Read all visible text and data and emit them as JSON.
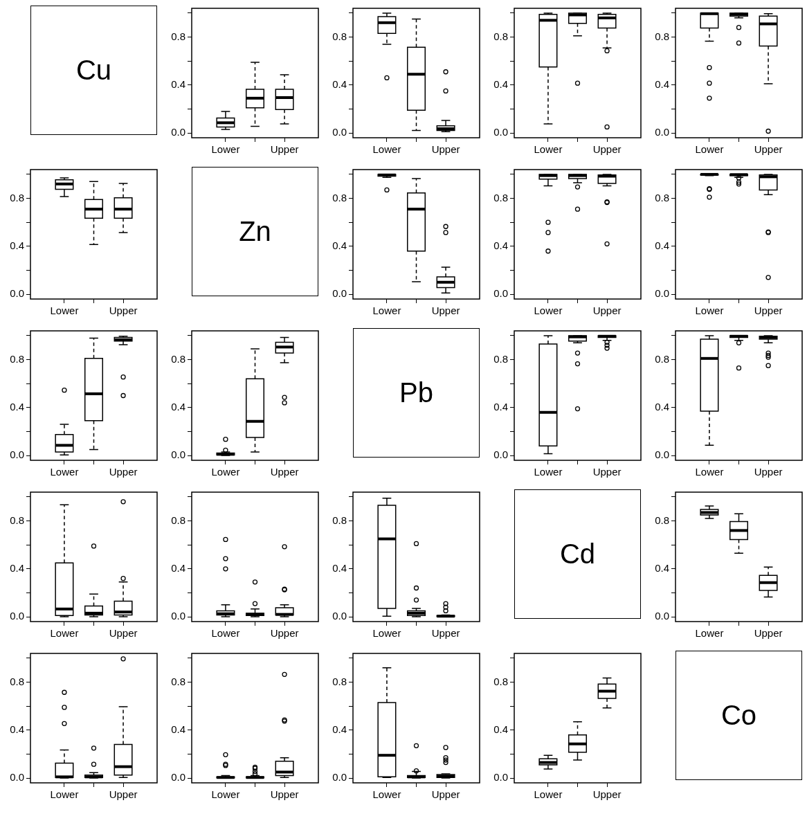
{
  "chart_data": [
    {
      "type": "other",
      "title": "Cu"
    },
    {
      "type": "box",
      "categories": [
        "Lower",
        null,
        "Upper"
      ],
      "ylim": [
        -0.04,
        1.04
      ],
      "yticks": [
        {
          "value": 0,
          "label": "0.0"
        },
        {
          "value": 0.2,
          "label": null
        },
        {
          "value": 0.4,
          "label": "0.4"
        },
        {
          "value": 0.6,
          "label": null
        },
        {
          "value": 0.8,
          "label": "0.8"
        },
        {
          "value": 1,
          "label": null
        }
      ],
      "boxes": [
        {
          "low": 0.03,
          "q1": 0.05,
          "median": 0.085,
          "q3": 0.125,
          "high": 0.18
        },
        {
          "low": 0.055,
          "q1": 0.21,
          "median": 0.29,
          "q3": 0.365,
          "high": 0.59
        },
        {
          "low": 0.075,
          "q1": 0.195,
          "median": 0.295,
          "q3": 0.365,
          "high": 0.485
        }
      ]
    },
    {
      "type": "box",
      "categories": [
        "Lower",
        null,
        "Upper"
      ],
      "ylim": [
        -0.04,
        1.04
      ],
      "yticks": [
        {
          "value": 0,
          "label": "0.0"
        },
        {
          "value": 0.2,
          "label": null
        },
        {
          "value": 0.4,
          "label": "0.4"
        },
        {
          "value": 0.6,
          "label": null
        },
        {
          "value": 0.8,
          "label": "0.8"
        },
        {
          "value": 1,
          "label": null
        }
      ],
      "boxes": [
        {
          "low": 0.74,
          "q1": 0.83,
          "median": 0.92,
          "q3": 0.97,
          "high": 1.0,
          "outliers": [
            0.46
          ]
        },
        {
          "low": 0.02,
          "q1": 0.19,
          "median": 0.49,
          "q3": 0.715,
          "high": 0.95
        },
        {
          "low": 0.01,
          "q1": 0.02,
          "median": 0.035,
          "q3": 0.06,
          "high": 0.105,
          "outliers": [
            0.35,
            0.51
          ]
        }
      ]
    },
    {
      "type": "box",
      "categories": [
        "Lower",
        null,
        "Upper"
      ],
      "ylim": [
        -0.04,
        1.04
      ],
      "yticks": [
        {
          "value": 0,
          "label": "0.0"
        },
        {
          "value": 0.2,
          "label": null
        },
        {
          "value": 0.4,
          "label": "0.4"
        },
        {
          "value": 0.6,
          "label": null
        },
        {
          "value": 0.8,
          "label": "0.8"
        },
        {
          "value": 1,
          "label": null
        }
      ],
      "boxes": [
        {
          "low": 0.075,
          "q1": 0.55,
          "median": 0.94,
          "q3": 0.99,
          "high": 1.0
        },
        {
          "low": 0.81,
          "q1": 0.915,
          "median": 0.985,
          "q3": 1.0,
          "high": 1.0,
          "outliers": [
            0.415
          ]
        },
        {
          "low": 0.71,
          "q1": 0.875,
          "median": 0.96,
          "q3": 0.99,
          "high": 1.0,
          "outliers": [
            0.685,
            0.05
          ]
        }
      ]
    },
    {
      "type": "box",
      "categories": [
        "Lower",
        null,
        "Upper"
      ],
      "ylim": [
        -0.04,
        1.04
      ],
      "yticks": [
        {
          "value": 0,
          "label": "0.0"
        },
        {
          "value": 0.2,
          "label": null
        },
        {
          "value": 0.4,
          "label": "0.4"
        },
        {
          "value": 0.6,
          "label": null
        },
        {
          "value": 0.8,
          "label": "0.8"
        },
        {
          "value": 1,
          "label": null
        }
      ],
      "boxes": [
        {
          "low": 0.765,
          "q1": 0.875,
          "median": 0.995,
          "q3": 1.0,
          "high": 1.0,
          "outliers": [
            0.545,
            0.415,
            0.29
          ]
        },
        {
          "low": 0.96,
          "q1": 0.975,
          "median": 0.99,
          "q3": 1.0,
          "high": 1.0,
          "outliers": [
            0.88,
            0.75
          ]
        },
        {
          "low": 0.41,
          "q1": 0.725,
          "median": 0.91,
          "q3": 0.975,
          "high": 0.995,
          "outliers": [
            0.015
          ]
        }
      ]
    },
    {
      "type": "box",
      "categories": [
        "Lower",
        null,
        "Upper"
      ],
      "ylim": [
        -0.04,
        1.04
      ],
      "yticks": [
        {
          "value": 0,
          "label": "0.0"
        },
        {
          "value": 0.2,
          "label": null
        },
        {
          "value": 0.4,
          "label": "0.4"
        },
        {
          "value": 0.6,
          "label": null
        },
        {
          "value": 0.8,
          "label": "0.8"
        },
        {
          "value": 1,
          "label": null
        }
      ],
      "boxes": [
        {
          "low": 0.815,
          "q1": 0.875,
          "median": 0.92,
          "q3": 0.955,
          "high": 0.97
        },
        {
          "low": 0.415,
          "q1": 0.635,
          "median": 0.71,
          "q3": 0.79,
          "high": 0.94
        },
        {
          "low": 0.515,
          "q1": 0.635,
          "median": 0.71,
          "q3": 0.805,
          "high": 0.925
        }
      ]
    },
    {
      "type": "other",
      "title": "Zn"
    },
    {
      "type": "box",
      "categories": [
        "Lower",
        null,
        "Upper"
      ],
      "ylim": [
        -0.04,
        1.04
      ],
      "yticks": [
        {
          "value": 0,
          "label": "0.0"
        },
        {
          "value": 0.2,
          "label": null
        },
        {
          "value": 0.4,
          "label": "0.4"
        },
        {
          "value": 0.6,
          "label": null
        },
        {
          "value": 0.8,
          "label": "0.8"
        },
        {
          "value": 1,
          "label": null
        }
      ],
      "boxes": [
        {
          "low": 0.975,
          "q1": 0.985,
          "median": 0.995,
          "q3": 1.0,
          "high": 1.0,
          "outliers": [
            0.87
          ]
        },
        {
          "low": 0.105,
          "q1": 0.36,
          "median": 0.71,
          "q3": 0.845,
          "high": 0.965
        },
        {
          "low": 0.01,
          "q1": 0.055,
          "median": 0.1,
          "q3": 0.145,
          "high": 0.225,
          "outliers": [
            0.565,
            0.515
          ]
        }
      ]
    },
    {
      "type": "box",
      "categories": [
        "Lower",
        null,
        "Upper"
      ],
      "ylim": [
        -0.04,
        1.04
      ],
      "yticks": [
        {
          "value": 0,
          "label": "0.0"
        },
        {
          "value": 0.2,
          "label": null
        },
        {
          "value": 0.4,
          "label": "0.4"
        },
        {
          "value": 0.6,
          "label": null
        },
        {
          "value": 0.8,
          "label": "0.8"
        },
        {
          "value": 1,
          "label": null
        }
      ],
      "boxes": [
        {
          "low": 0.905,
          "q1": 0.96,
          "median": 0.99,
          "q3": 1.0,
          "high": 1.0,
          "outliers": [
            0.6,
            0.515,
            0.36
          ]
        },
        {
          "low": 0.93,
          "q1": 0.965,
          "median": 0.99,
          "q3": 1.0,
          "high": 1.0,
          "outliers": [
            0.895,
            0.71
          ]
        },
        {
          "low": 0.905,
          "q1": 0.925,
          "median": 0.985,
          "q3": 0.995,
          "high": 1.0,
          "outliers": [
            0.77,
            0.765,
            0.42
          ]
        }
      ]
    },
    {
      "type": "box",
      "categories": [
        "Lower",
        null,
        "Upper"
      ],
      "ylim": [
        -0.04,
        1.04
      ],
      "yticks": [
        {
          "value": 0,
          "label": "0.0"
        },
        {
          "value": 0.2,
          "label": null
        },
        {
          "value": 0.4,
          "label": "0.4"
        },
        {
          "value": 0.6,
          "label": null
        },
        {
          "value": 0.8,
          "label": "0.8"
        },
        {
          "value": 1,
          "label": null
        }
      ],
      "boxes": [
        {
          "low": 0.99,
          "q1": 0.995,
          "median": 1.0,
          "q3": 1.0,
          "high": 1.0,
          "outliers": [
            0.88,
            0.875,
            0.81
          ]
        },
        {
          "low": 0.975,
          "q1": 0.99,
          "median": 0.998,
          "q3": 1.0,
          "high": 1.0,
          "outliers": [
            0.97,
            0.935,
            0.92
          ]
        },
        {
          "low": 0.83,
          "q1": 0.87,
          "median": 0.98,
          "q3": 0.995,
          "high": 1.0,
          "outliers": [
            0.52,
            0.515,
            0.14
          ]
        }
      ]
    },
    {
      "type": "box",
      "categories": [
        "Lower",
        null,
        "Upper"
      ],
      "ylim": [
        -0.04,
        1.04
      ],
      "yticks": [
        {
          "value": 0,
          "label": "0.0"
        },
        {
          "value": 0.2,
          "label": null
        },
        {
          "value": 0.4,
          "label": "0.4"
        },
        {
          "value": 0.6,
          "label": null
        },
        {
          "value": 0.8,
          "label": "0.8"
        },
        {
          "value": 1,
          "label": null
        }
      ],
      "boxes": [
        {
          "low": 0.005,
          "q1": 0.03,
          "median": 0.085,
          "q3": 0.175,
          "high": 0.26,
          "outliers": [
            0.545
          ]
        },
        {
          "low": 0.05,
          "q1": 0.29,
          "median": 0.515,
          "q3": 0.81,
          "high": 0.98
        },
        {
          "low": 0.925,
          "q1": 0.955,
          "median": 0.965,
          "q3": 0.985,
          "high": 0.995,
          "outliers": [
            0.655,
            0.5
          ]
        }
      ]
    },
    {
      "type": "box",
      "categories": [
        "Lower",
        null,
        "Upper"
      ],
      "ylim": [
        -0.04,
        1.04
      ],
      "yticks": [
        {
          "value": 0,
          "label": "0.0"
        },
        {
          "value": 0.2,
          "label": null
        },
        {
          "value": 0.4,
          "label": "0.4"
        },
        {
          "value": 0.6,
          "label": null
        },
        {
          "value": 0.8,
          "label": "0.8"
        },
        {
          "value": 1,
          "label": null
        }
      ],
      "boxes": [
        {
          "low": 0.0,
          "q1": 0.005,
          "median": 0.01,
          "q3": 0.02,
          "high": 0.03,
          "outliers": [
            0.045,
            0.135
          ]
        },
        {
          "low": 0.03,
          "q1": 0.15,
          "median": 0.285,
          "q3": 0.64,
          "high": 0.89
        },
        {
          "low": 0.775,
          "q1": 0.855,
          "median": 0.905,
          "q3": 0.945,
          "high": 0.985,
          "outliers": [
            0.485,
            0.44
          ]
        }
      ]
    },
    {
      "type": "other",
      "title": "Pb"
    },
    {
      "type": "box",
      "categories": [
        "Lower",
        null,
        "Upper"
      ],
      "ylim": [
        -0.04,
        1.04
      ],
      "yticks": [
        {
          "value": 0,
          "label": "0.0"
        },
        {
          "value": 0.2,
          "label": null
        },
        {
          "value": 0.4,
          "label": "0.4"
        },
        {
          "value": 0.6,
          "label": null
        },
        {
          "value": 0.8,
          "label": "0.8"
        },
        {
          "value": 1,
          "label": null
        }
      ],
      "boxes": [
        {
          "low": 0.015,
          "q1": 0.08,
          "median": 0.36,
          "q3": 0.93,
          "high": 1.0
        },
        {
          "low": 0.94,
          "q1": 0.955,
          "median": 0.99,
          "q3": 1.0,
          "high": 1.0,
          "outliers": [
            0.855,
            0.765,
            0.39
          ]
        },
        {
          "low": 0.96,
          "q1": 0.985,
          "median": 0.995,
          "q3": 1.0,
          "high": 1.0,
          "outliers": [
            0.945,
            0.92,
            0.895
          ]
        }
      ]
    },
    {
      "type": "box",
      "categories": [
        "Lower",
        null,
        "Upper"
      ],
      "ylim": [
        -0.04,
        1.04
      ],
      "yticks": [
        {
          "value": 0,
          "label": "0.0"
        },
        {
          "value": 0.2,
          "label": null
        },
        {
          "value": 0.4,
          "label": "0.4"
        },
        {
          "value": 0.6,
          "label": null
        },
        {
          "value": 0.8,
          "label": "0.8"
        },
        {
          "value": 1,
          "label": null
        }
      ],
      "boxes": [
        {
          "low": 0.085,
          "q1": 0.37,
          "median": 0.81,
          "q3": 0.97,
          "high": 1.0
        },
        {
          "low": 0.96,
          "q1": 0.985,
          "median": 0.995,
          "q3": 1.0,
          "high": 1.0,
          "outliers": [
            0.94,
            0.73
          ]
        },
        {
          "low": 0.94,
          "q1": 0.97,
          "median": 0.985,
          "q3": 0.995,
          "high": 1.0,
          "outliers": [
            0.855,
            0.835,
            0.82,
            0.75
          ]
        }
      ]
    },
    {
      "type": "box",
      "categories": [
        "Lower",
        null,
        "Upper"
      ],
      "ylim": [
        -0.04,
        1.04
      ],
      "yticks": [
        {
          "value": 0,
          "label": "0.0"
        },
        {
          "value": 0.2,
          "label": null
        },
        {
          "value": 0.4,
          "label": "0.4"
        },
        {
          "value": 0.6,
          "label": null
        },
        {
          "value": 0.8,
          "label": "0.8"
        },
        {
          "value": 1,
          "label": null
        }
      ],
      "boxes": [
        {
          "low": 0.0,
          "q1": 0.01,
          "median": 0.065,
          "q3": 0.45,
          "high": 0.935
        },
        {
          "low": 0.0,
          "q1": 0.015,
          "median": 0.03,
          "q3": 0.09,
          "high": 0.19,
          "outliers": [
            0.59
          ]
        },
        {
          "low": 0.0,
          "q1": 0.015,
          "median": 0.04,
          "q3": 0.13,
          "high": 0.29,
          "outliers": [
            0.32,
            0.96
          ]
        }
      ]
    },
    {
      "type": "box",
      "categories": [
        "Lower",
        null,
        "Upper"
      ],
      "ylim": [
        -0.04,
        1.04
      ],
      "yticks": [
        {
          "value": 0,
          "label": "0.0"
        },
        {
          "value": 0.2,
          "label": null
        },
        {
          "value": 0.4,
          "label": "0.4"
        },
        {
          "value": 0.6,
          "label": null
        },
        {
          "value": 0.8,
          "label": "0.8"
        },
        {
          "value": 1,
          "label": null
        }
      ],
      "boxes": [
        {
          "low": 0.0,
          "q1": 0.015,
          "median": 0.025,
          "q3": 0.05,
          "high": 0.1,
          "outliers": [
            0.4,
            0.485,
            0.645
          ]
        },
        {
          "low": 0.0,
          "q1": 0.01,
          "median": 0.02,
          "q3": 0.03,
          "high": 0.065,
          "outliers": [
            0.11,
            0.29
          ]
        },
        {
          "low": 0.0,
          "q1": 0.015,
          "median": 0.02,
          "q3": 0.075,
          "high": 0.1,
          "outliers": [
            0.225,
            0.23,
            0.585
          ]
        }
      ]
    },
    {
      "type": "box",
      "categories": [
        "Lower",
        null,
        "Upper"
      ],
      "ylim": [
        -0.04,
        1.04
      ],
      "yticks": [
        {
          "value": 0,
          "label": "0.0"
        },
        {
          "value": 0.2,
          "label": null
        },
        {
          "value": 0.4,
          "label": "0.4"
        },
        {
          "value": 0.6,
          "label": null
        },
        {
          "value": 0.8,
          "label": "0.8"
        },
        {
          "value": 1,
          "label": null
        }
      ],
      "boxes": [
        {
          "low": 0.005,
          "q1": 0.07,
          "median": 0.65,
          "q3": 0.93,
          "high": 0.99
        },
        {
          "low": 0.0,
          "q1": 0.01,
          "median": 0.03,
          "q3": 0.05,
          "high": 0.07,
          "outliers": [
            0.14,
            0.24,
            0.61
          ]
        },
        {
          "low": 0.0,
          "q1": 0.002,
          "median": 0.005,
          "q3": 0.01,
          "high": 0.015,
          "outliers": [
            0.05,
            0.08,
            0.11
          ]
        }
      ]
    },
    {
      "type": "other",
      "title": "Cd"
    },
    {
      "type": "box",
      "categories": [
        "Lower",
        null,
        "Upper"
      ],
      "ylim": [
        -0.04,
        1.04
      ],
      "yticks": [
        {
          "value": 0,
          "label": "0.0"
        },
        {
          "value": 0.2,
          "label": null
        },
        {
          "value": 0.4,
          "label": "0.4"
        },
        {
          "value": 0.6,
          "label": null
        },
        {
          "value": 0.8,
          "label": "0.8"
        },
        {
          "value": 1,
          "label": null
        }
      ],
      "boxes": [
        {
          "low": 0.82,
          "q1": 0.85,
          "median": 0.87,
          "q3": 0.895,
          "high": 0.925
        },
        {
          "low": 0.53,
          "q1": 0.645,
          "median": 0.72,
          "q3": 0.795,
          "high": 0.86
        },
        {
          "low": 0.165,
          "q1": 0.22,
          "median": 0.285,
          "q3": 0.345,
          "high": 0.415
        }
      ]
    },
    {
      "type": "box",
      "categories": [
        "Lower",
        null,
        "Upper"
      ],
      "ylim": [
        -0.04,
        1.04
      ],
      "yticks": [
        {
          "value": 0,
          "label": "0.0"
        },
        {
          "value": 0.2,
          "label": null
        },
        {
          "value": 0.4,
          "label": "0.4"
        },
        {
          "value": 0.6,
          "label": null
        },
        {
          "value": 0.8,
          "label": "0.8"
        },
        {
          "value": 1,
          "label": null
        }
      ],
      "boxes": [
        {
          "low": 0.0,
          "q1": 0.005,
          "median": 0.01,
          "q3": 0.125,
          "high": 0.235,
          "outliers": [
            0.455,
            0.59,
            0.715
          ]
        },
        {
          "low": 0.0,
          "q1": 0.005,
          "median": 0.01,
          "q3": 0.025,
          "high": 0.045,
          "outliers": [
            0.115,
            0.25
          ]
        },
        {
          "low": 0.005,
          "q1": 0.025,
          "median": 0.095,
          "q3": 0.28,
          "high": 0.595,
          "outliers": [
            0.995
          ]
        }
      ]
    },
    {
      "type": "box",
      "categories": [
        "Lower",
        null,
        "Upper"
      ],
      "ylim": [
        -0.04,
        1.04
      ],
      "yticks": [
        {
          "value": 0,
          "label": "0.0"
        },
        {
          "value": 0.2,
          "label": null
        },
        {
          "value": 0.4,
          "label": "0.4"
        },
        {
          "value": 0.6,
          "label": null
        },
        {
          "value": 0.8,
          "label": "0.8"
        },
        {
          "value": 1,
          "label": null
        }
      ],
      "boxes": [
        {
          "low": 0.0,
          "q1": 0.002,
          "median": 0.005,
          "q3": 0.01,
          "high": 0.02,
          "outliers": [
            0.105,
            0.115,
            0.195
          ]
        },
        {
          "low": 0.0,
          "q1": 0.002,
          "median": 0.005,
          "q3": 0.01,
          "high": 0.02,
          "outliers": [
            0.035,
            0.055,
            0.08,
            0.09
          ]
        },
        {
          "low": 0.005,
          "q1": 0.02,
          "median": 0.05,
          "q3": 0.14,
          "high": 0.17,
          "outliers": [
            0.475,
            0.485,
            0.865
          ]
        }
      ]
    },
    {
      "type": "box",
      "categories": [
        "Lower",
        null,
        "Upper"
      ],
      "ylim": [
        -0.04,
        1.04
      ],
      "yticks": [
        {
          "value": 0,
          "label": "0.0"
        },
        {
          "value": 0.2,
          "label": null
        },
        {
          "value": 0.4,
          "label": "0.4"
        },
        {
          "value": 0.6,
          "label": null
        },
        {
          "value": 0.8,
          "label": "0.8"
        },
        {
          "value": 1,
          "label": null
        }
      ],
      "boxes": [
        {
          "low": 0.005,
          "q1": 0.01,
          "median": 0.19,
          "q3": 0.63,
          "high": 0.92
        },
        {
          "low": 0.0,
          "q1": 0.005,
          "median": 0.01,
          "q3": 0.02,
          "high": 0.055,
          "outliers": [
            0.06,
            0.27
          ]
        },
        {
          "low": 0.0,
          "q1": 0.005,
          "median": 0.015,
          "q3": 0.03,
          "high": 0.035,
          "outliers": [
            0.13,
            0.15,
            0.17,
            0.255
          ]
        }
      ]
    },
    {
      "type": "box",
      "categories": [
        "Lower",
        null,
        "Upper"
      ],
      "ylim": [
        -0.04,
        1.04
      ],
      "yticks": [
        {
          "value": 0,
          "label": "0.0"
        },
        {
          "value": 0.2,
          "label": null
        },
        {
          "value": 0.4,
          "label": "0.4"
        },
        {
          "value": 0.6,
          "label": null
        },
        {
          "value": 0.8,
          "label": "0.8"
        },
        {
          "value": 1,
          "label": null
        }
      ],
      "boxes": [
        {
          "low": 0.075,
          "q1": 0.11,
          "median": 0.13,
          "q3": 0.16,
          "high": 0.19
        },
        {
          "low": 0.15,
          "q1": 0.215,
          "median": 0.285,
          "q3": 0.36,
          "high": 0.47
        },
        {
          "low": 0.585,
          "q1": 0.665,
          "median": 0.725,
          "q3": 0.785,
          "high": 0.835
        }
      ]
    },
    {
      "type": "other",
      "title": "Co"
    }
  ]
}
